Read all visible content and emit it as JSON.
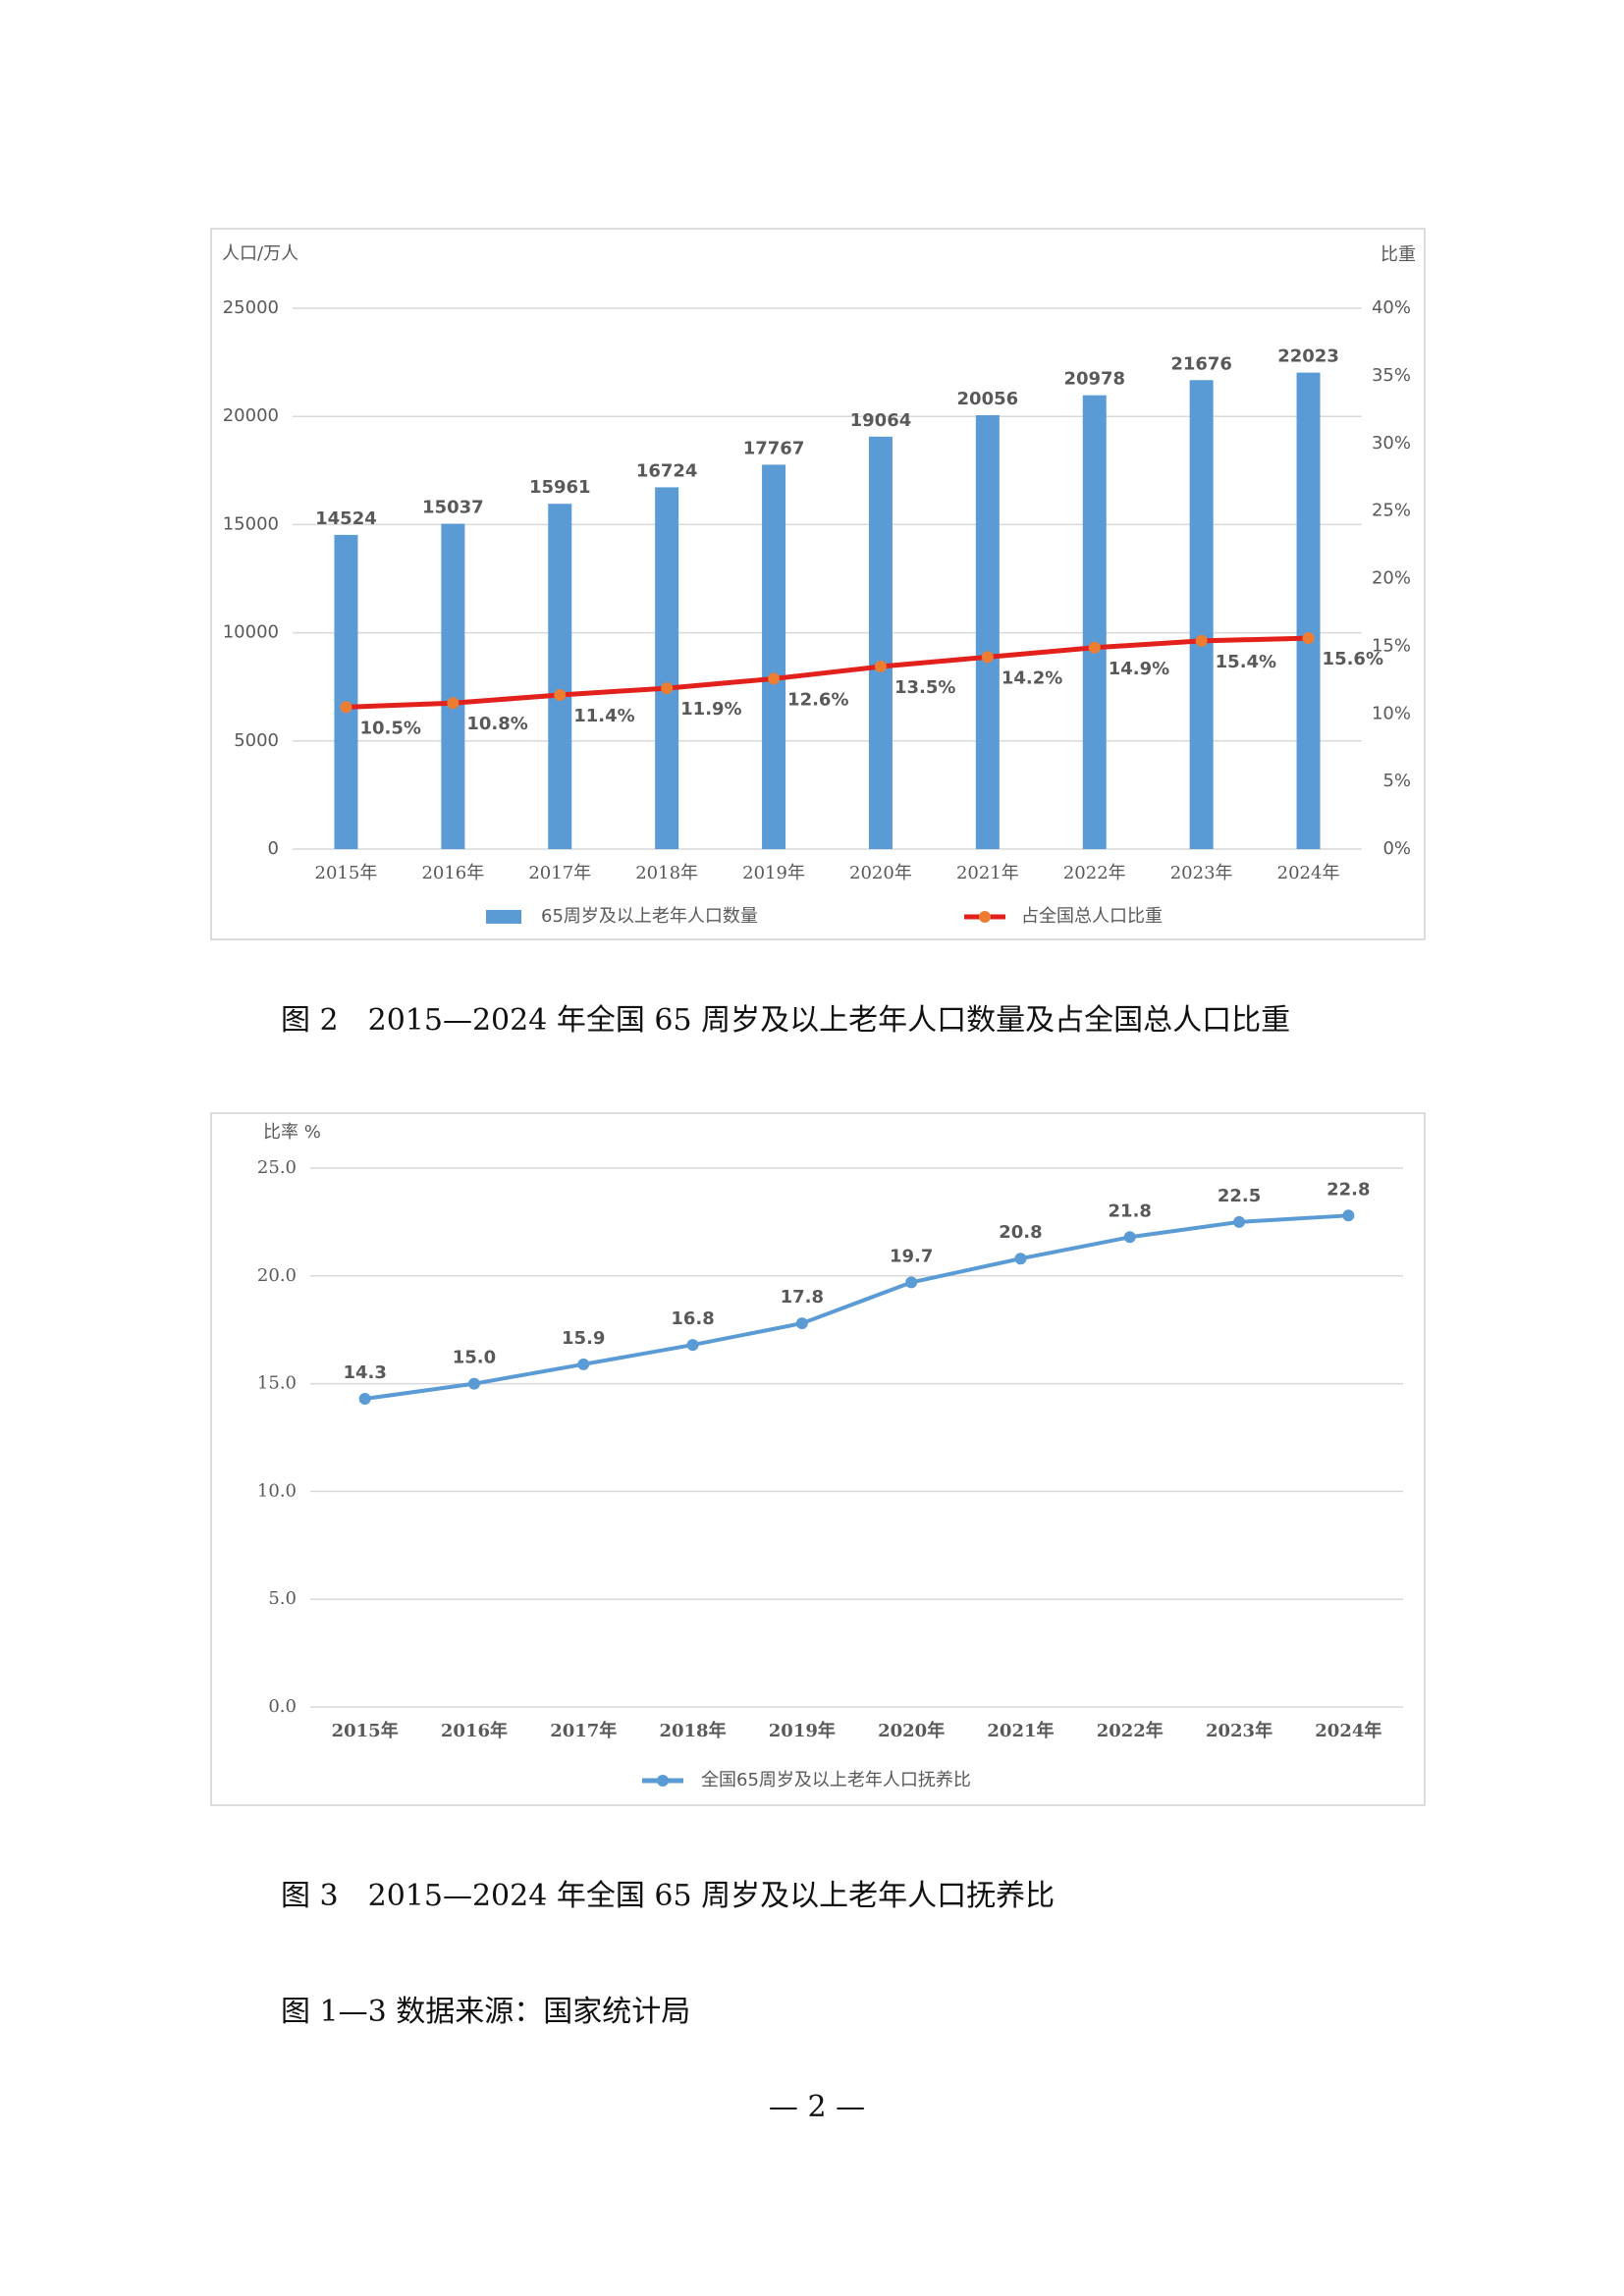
{
  "chart_data": [
    {
      "type": "combo",
      "y_axis_title": "人口/万人",
      "y2_axis_title": "比重",
      "categories": [
        "2015年",
        "2016年",
        "2017年",
        "2018年",
        "2019年",
        "2020年",
        "2021年",
        "2022年",
        "2023年",
        "2024年"
      ],
      "series": [
        {
          "name": "65周岁及以上老年人口数量",
          "type": "bar",
          "color": "#5b9bd5",
          "values": [
            14524,
            15037,
            15961,
            16724,
            17767,
            19064,
            20056,
            20978,
            21676,
            22023
          ]
        },
        {
          "name": "占全国总人口比重",
          "type": "line",
          "axis": "y2",
          "color": "#e3211c",
          "marker_color": "#ed7d31",
          "values": [
            10.5,
            10.8,
            11.4,
            11.9,
            12.6,
            13.5,
            14.2,
            14.9,
            15.4,
            15.6
          ],
          "value_labels": [
            "10.5%",
            "10.8%",
            "11.4%",
            "11.9%",
            "12.6%",
            "13.5%",
            "14.2%",
            "14.9%",
            "15.4%",
            "15.6%"
          ]
        }
      ],
      "ylim": [
        0,
        25000
      ],
      "yticks": [
        0,
        5000,
        10000,
        15000,
        20000,
        25000
      ],
      "y2lim": [
        0,
        40
      ],
      "y2ticks": [
        {
          "value": 0,
          "label": "0%"
        },
        {
          "value": 5,
          "label": "5%"
        },
        {
          "value": 10,
          "label": "10%"
        },
        {
          "value": 15,
          "label": "15%"
        },
        {
          "value": 20,
          "label": "20%"
        },
        {
          "value": 25,
          "label": "25%"
        },
        {
          "value": 30,
          "label": "30%"
        },
        {
          "value": 35,
          "label": "35%"
        },
        {
          "value": 40,
          "label": "40%"
        }
      ],
      "grid": true,
      "legend": "bottom"
    },
    {
      "type": "line",
      "y_axis_title": "比率 %",
      "categories": [
        "2015年",
        "2016年",
        "2017年",
        "2018年",
        "2019年",
        "2020年",
        "2021年",
        "2022年",
        "2023年",
        "2024年"
      ],
      "series": [
        {
          "name": "全国65周岁及以上老年人口抚养比",
          "type": "line",
          "color": "#5b9bd5",
          "marker_color": "#5b9bd5",
          "values": [
            14.3,
            15.0,
            15.9,
            16.8,
            17.8,
            19.7,
            20.8,
            21.8,
            22.5,
            22.8
          ],
          "value_labels": [
            "14.3",
            "15.0",
            "15.9",
            "16.8",
            "17.8",
            "19.7",
            "20.8",
            "21.8",
            "22.5",
            "22.8"
          ]
        }
      ],
      "ylim": [
        0,
        25
      ],
      "yticks": [
        {
          "value": 0,
          "label": "0.0"
        },
        {
          "value": 5,
          "label": "5.0"
        },
        {
          "value": 10,
          "label": "10.0"
        },
        {
          "value": 15,
          "label": "15.0"
        },
        {
          "value": 20,
          "label": "20.0"
        },
        {
          "value": 25,
          "label": "25.0"
        }
      ],
      "grid": true,
      "legend": "bottom"
    }
  ],
  "captions": [
    "图 2　2015—2024 年全国 65 周岁及以上老年人口数量及占全国总人口比重",
    "图 3　2015—2024 年全国 65 周岁及以上老年人口抚养比"
  ],
  "source": "图 1—3 数据来源：国家统计局",
  "page_number": "— 2 —"
}
